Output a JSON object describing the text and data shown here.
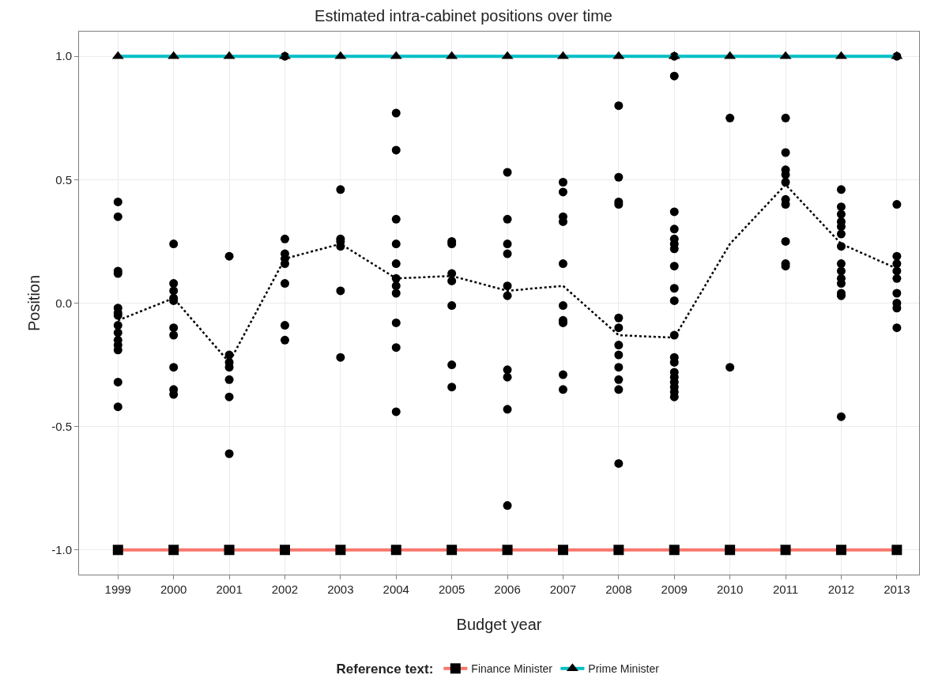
{
  "chart_data": {
    "type": "line",
    "title": "Estimated intra-cabinet positions over time",
    "xlabel": "Budget year",
    "ylabel": "Position",
    "legend_title": "Reference text:",
    "legend": "bottom",
    "grid": true,
    "x": [
      1999,
      2000,
      2001,
      2002,
      2003,
      2004,
      2005,
      2006,
      2007,
      2008,
      2009,
      2010,
      2011,
      2012,
      2013
    ],
    "xlim": [
      1998.3,
      2013.4
    ],
    "xticks": [
      1999,
      2000,
      2001,
      2002,
      2003,
      2004,
      2005,
      2006,
      2007,
      2008,
      2009,
      2010,
      2011,
      2012,
      2013
    ],
    "ylim": [
      -1.1,
      1.1
    ],
    "yticks": [
      {
        "value": -1,
        "label": "-1.0"
      },
      {
        "value": -0.5,
        "label": "-0.5"
      },
      {
        "value": 0,
        "label": "0.0"
      },
      {
        "value": 0.5,
        "label": "0.5"
      },
      {
        "value": 1,
        "label": "1.0"
      }
    ],
    "series": [
      {
        "type": "scatter",
        "marker": "circle",
        "color": "#000000",
        "x": [
          1999,
          1999,
          1999,
          1999,
          1999,
          1999,
          1999,
          1999,
          1999,
          1999,
          1999,
          1999,
          1999,
          1999,
          2000,
          2000,
          2000,
          2000,
          2000,
          2000,
          2000,
          2000,
          2000,
          2000,
          2001,
          2001,
          2001,
          2001,
          2001,
          2001,
          2001,
          2002,
          2002,
          2002,
          2002,
          2002,
          2002,
          2002,
          2002,
          2003,
          2003,
          2003,
          2003,
          2003,
          2003,
          2004,
          2004,
          2004,
          2004,
          2004,
          2004,
          2004,
          2004,
          2004,
          2004,
          2004,
          2005,
          2005,
          2005,
          2005,
          2005,
          2005,
          2005,
          2006,
          2006,
          2006,
          2006,
          2006,
          2006,
          2006,
          2006,
          2006,
          2006,
          2007,
          2007,
          2007,
          2007,
          2007,
          2007,
          2007,
          2007,
          2007,
          2007,
          2008,
          2008,
          2008,
          2008,
          2008,
          2008,
          2008,
          2008,
          2008,
          2008,
          2008,
          2008,
          2009,
          2009,
          2009,
          2009,
          2009,
          2009,
          2009,
          2009,
          2009,
          2009,
          2009,
          2009,
          2009,
          2009,
          2009,
          2009,
          2009,
          2009,
          2009,
          2010,
          2010,
          2011,
          2011,
          2011,
          2011,
          2011,
          2011,
          2011,
          2011,
          2011,
          2011,
          2012,
          2012,
          2012,
          2012,
          2012,
          2012,
          2012,
          2012,
          2012,
          2012,
          2012,
          2012,
          2012,
          2012,
          2013,
          2013,
          2013,
          2013,
          2013,
          2013,
          2013,
          2013,
          2013,
          2013
        ],
        "values": [
          0.41,
          0.35,
          0.13,
          0.12,
          -0.02,
          -0.04,
          -0.05,
          -0.09,
          -0.12,
          -0.15,
          -0.17,
          -0.19,
          -0.32,
          -0.42,
          0.24,
          0.08,
          0.05,
          0.02,
          0.01,
          -0.1,
          -0.13,
          -0.26,
          -0.35,
          -0.37,
          0.19,
          -0.21,
          -0.24,
          -0.26,
          -0.31,
          -0.38,
          -0.61,
          1.0,
          0.26,
          0.2,
          0.18,
          0.16,
          0.08,
          -0.09,
          -0.15,
          0.46,
          0.26,
          0.25,
          0.23,
          0.05,
          -0.22,
          0.77,
          0.62,
          0.34,
          0.24,
          0.16,
          0.1,
          0.07,
          0.04,
          -0.08,
          -0.18,
          -0.44,
          0.25,
          0.24,
          0.12,
          0.09,
          -0.01,
          -0.25,
          -0.34,
          0.53,
          0.34,
          0.24,
          0.2,
          0.07,
          0.03,
          -0.27,
          -0.3,
          -0.43,
          -0.82,
          0.49,
          0.45,
          0.35,
          0.33,
          0.16,
          -0.01,
          -0.07,
          -0.08,
          -0.29,
          -0.35,
          0.8,
          0.51,
          0.41,
          0.4,
          -0.06,
          -0.1,
          -0.17,
          -0.21,
          -0.26,
          -0.31,
          -0.35,
          -0.65,
          1.0,
          0.92,
          0.37,
          0.3,
          0.26,
          0.24,
          0.22,
          0.15,
          0.06,
          0.01,
          -0.13,
          -0.22,
          -0.24,
          -0.28,
          -0.3,
          -0.32,
          -0.34,
          -0.36,
          -0.38,
          0.75,
          -0.26,
          0.75,
          0.61,
          0.54,
          0.52,
          0.49,
          0.42,
          0.4,
          0.25,
          0.16,
          0.15,
          0.46,
          0.39,
          0.36,
          0.33,
          0.31,
          0.28,
          0.23,
          0.16,
          0.13,
          0.1,
          0.08,
          0.04,
          0.03,
          -0.46,
          1.0,
          0.4,
          0.19,
          0.16,
          0.13,
          0.1,
          0.04,
          0.0,
          -0.02,
          -0.1
        ]
      },
      {
        "marker": "none",
        "line_style": "dotted",
        "color": "#000000",
        "values": [
          -0.07,
          0.02,
          -0.24,
          0.18,
          0.24,
          0.1,
          0.11,
          0.05,
          0.07,
          -0.13,
          -0.14,
          0.24,
          0.48,
          0.24,
          0.14
        ]
      },
      {
        "name": "Finance Minister",
        "marker": "square",
        "line_style": "solid",
        "color": "#f8766d",
        "values": [
          -1,
          -1,
          -1,
          -1,
          -1,
          -1,
          -1,
          -1,
          -1,
          -1,
          -1,
          -1,
          -1,
          -1,
          -1
        ]
      },
      {
        "name": "Prime Minister",
        "marker": "triangle",
        "line_style": "solid",
        "color": "#00bfc4",
        "values": [
          1,
          1,
          1,
          1,
          1,
          1,
          1,
          1,
          1,
          1,
          1,
          1,
          1,
          1,
          1
        ]
      }
    ]
  }
}
